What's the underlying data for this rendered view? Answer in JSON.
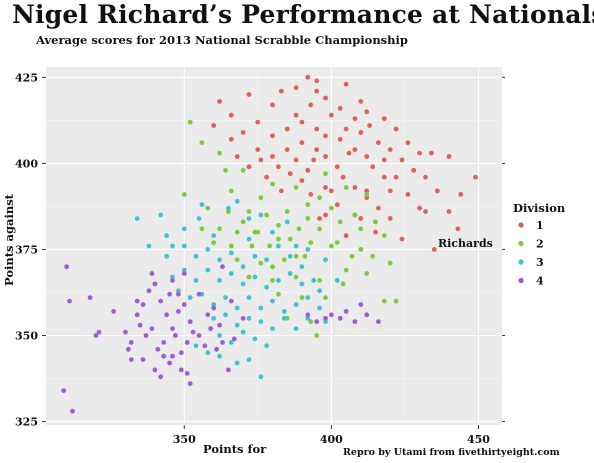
{
  "chart_data": {
    "type": "scatter",
    "title": "Nigel Richard’s Performance at Nationals",
    "subtitle": "Average scores for 2013 National Scrabble Championship",
    "xlabel": "Points for",
    "ylabel": "Points against",
    "xlim": [
      303,
      458
    ],
    "ylim": [
      324,
      428
    ],
    "xticks": [
      350,
      400,
      450
    ],
    "yticks": [
      325,
      350,
      375,
      400,
      425
    ],
    "grid": true,
    "legend": {
      "title": "Division",
      "placement": "right"
    },
    "annotation": {
      "text": "Richards",
      "x": 436,
      "y": 375
    },
    "credit": "Repro by Utami from fivethirtyeight.com",
    "series": [
      {
        "name": "1",
        "color": "#E0605A",
        "points": [
          [
            392,
            425
          ],
          [
            395,
            424
          ],
          [
            388,
            422
          ],
          [
            395,
            421
          ],
          [
            405,
            423
          ],
          [
            383,
            421
          ],
          [
            398,
            419
          ],
          [
            410,
            418
          ],
          [
            372,
            420
          ],
          [
            362,
            418
          ],
          [
            380,
            417
          ],
          [
            393,
            417
          ],
          [
            403,
            416
          ],
          [
            412,
            415
          ],
          [
            366,
            414
          ],
          [
            388,
            414
          ],
          [
            400,
            414
          ],
          [
            418,
            413
          ],
          [
            375,
            412
          ],
          [
            390,
            412
          ],
          [
            408,
            413
          ],
          [
            360,
            411
          ],
          [
            385,
            410
          ],
          [
            395,
            410
          ],
          [
            405,
            410
          ],
          [
            413,
            411
          ],
          [
            422,
            410
          ],
          [
            370,
            409
          ],
          [
            380,
            408
          ],
          [
            398,
            408
          ],
          [
            410,
            409
          ],
          [
            366,
            407
          ],
          [
            390,
            406
          ],
          [
            403,
            407
          ],
          [
            416,
            406
          ],
          [
            426,
            406
          ],
          [
            375,
            404
          ],
          [
            385,
            404
          ],
          [
            395,
            404
          ],
          [
            408,
            404
          ],
          [
            420,
            404
          ],
          [
            430,
            403
          ],
          [
            368,
            402
          ],
          [
            380,
            402
          ],
          [
            388,
            401
          ],
          [
            398,
            402
          ],
          [
            412,
            402
          ],
          [
            424,
            401
          ],
          [
            434,
            403
          ],
          [
            440,
            402
          ],
          [
            372,
            399
          ],
          [
            382,
            399
          ],
          [
            392,
            398
          ],
          [
            402,
            399
          ],
          [
            414,
            399
          ],
          [
            428,
            398
          ],
          [
            378,
            396
          ],
          [
            390,
            395
          ],
          [
            404,
            396
          ],
          [
            418,
            396
          ],
          [
            432,
            396
          ],
          [
            398,
            393
          ],
          [
            408,
            393
          ],
          [
            420,
            392
          ],
          [
            436,
            392
          ],
          [
            449,
            396
          ],
          [
            383,
            392
          ],
          [
            393,
            391
          ],
          [
            412,
            390
          ],
          [
            426,
            391
          ],
          [
            444,
            391
          ],
          [
            402,
            388
          ],
          [
            416,
            387
          ],
          [
            430,
            387
          ],
          [
            398,
            385
          ],
          [
            408,
            385
          ],
          [
            420,
            384
          ],
          [
            440,
            386
          ],
          [
            432,
            386
          ],
          [
            415,
            380
          ],
          [
            424,
            378
          ],
          [
            405,
            379
          ],
          [
            443,
            381
          ],
          [
            396,
            384
          ],
          [
            412,
            392
          ],
          [
            400,
            392
          ],
          [
            394,
            401
          ],
          [
            406,
            403
          ],
          [
            418,
            401
          ],
          [
            386,
            397
          ],
          [
            376,
            401
          ],
          [
            410,
            384
          ],
          [
            422,
            396
          ],
          [
            435,
            375
          ]
        ]
      },
      {
        "name": "2",
        "color": "#7CCB3C",
        "points": [
          [
            352,
            412
          ],
          [
            356,
            406
          ],
          [
            362,
            403
          ],
          [
            364,
            398
          ],
          [
            370,
            398
          ],
          [
            380,
            394
          ],
          [
            388,
            393
          ],
          [
            398,
            397
          ],
          [
            405,
            393
          ],
          [
            412,
            391
          ],
          [
            350,
            391
          ],
          [
            358,
            387
          ],
          [
            365,
            386
          ],
          [
            372,
            386
          ],
          [
            378,
            385
          ],
          [
            385,
            386
          ],
          [
            392,
            388
          ],
          [
            400,
            387
          ],
          [
            408,
            385
          ],
          [
            415,
            383
          ],
          [
            356,
            381
          ],
          [
            362,
            381
          ],
          [
            368,
            380
          ],
          [
            375,
            380
          ],
          [
            382,
            382
          ],
          [
            389,
            381
          ],
          [
            396,
            381
          ],
          [
            403,
            383
          ],
          [
            410,
            381
          ],
          [
            418,
            379
          ],
          [
            360,
            377
          ],
          [
            366,
            376
          ],
          [
            373,
            376
          ],
          [
            379,
            376
          ],
          [
            386,
            378
          ],
          [
            393,
            377
          ],
          [
            400,
            376
          ],
          [
            407,
            373
          ],
          [
            414,
            373
          ],
          [
            420,
            371
          ],
          [
            368,
            372
          ],
          [
            376,
            371
          ],
          [
            384,
            372
          ],
          [
            391,
            373
          ],
          [
            398,
            372
          ],
          [
            405,
            369
          ],
          [
            412,
            368
          ],
          [
            372,
            367
          ],
          [
            380,
            366
          ],
          [
            388,
            367
          ],
          [
            396,
            366
          ],
          [
            404,
            365
          ],
          [
            382,
            362
          ],
          [
            390,
            361
          ],
          [
            398,
            361
          ],
          [
            418,
            360
          ],
          [
            422,
            360
          ],
          [
            385,
            355
          ],
          [
            393,
            354
          ],
          [
            395,
            350
          ],
          [
            376,
            390
          ],
          [
            382,
            378
          ],
          [
            370,
            383
          ],
          [
            388,
            373
          ],
          [
            392,
            384
          ],
          [
            366,
            392
          ],
          [
            402,
            377
          ],
          [
            374,
            380
          ],
          [
            380,
            370
          ],
          [
            410,
            375
          ],
          [
            396,
            390
          ]
        ]
      },
      {
        "name": "3",
        "color": "#3FC4CE",
        "points": [
          [
            334,
            384
          ],
          [
            342,
            385
          ],
          [
            350,
            381
          ],
          [
            355,
            384
          ],
          [
            360,
            379
          ],
          [
            365,
            387
          ],
          [
            368,
            389
          ],
          [
            372,
            384
          ],
          [
            376,
            385
          ],
          [
            380,
            380
          ],
          [
            385,
            383
          ],
          [
            338,
            376
          ],
          [
            344,
            373
          ],
          [
            350,
            376
          ],
          [
            354,
            373
          ],
          [
            358,
            375
          ],
          [
            362,
            372
          ],
          [
            366,
            374
          ],
          [
            370,
            370
          ],
          [
            374,
            373
          ],
          [
            378,
            372
          ],
          [
            382,
            376
          ],
          [
            386,
            373
          ],
          [
            390,
            370
          ],
          [
            346,
            367
          ],
          [
            350,
            369
          ],
          [
            354,
            366
          ],
          [
            358,
            369
          ],
          [
            362,
            366
          ],
          [
            366,
            368
          ],
          [
            370,
            365
          ],
          [
            374,
            367
          ],
          [
            378,
            364
          ],
          [
            382,
            366
          ],
          [
            386,
            368
          ],
          [
            390,
            365
          ],
          [
            394,
            366
          ],
          [
            352,
            361
          ],
          [
            356,
            362
          ],
          [
            360,
            359
          ],
          [
            364,
            361
          ],
          [
            368,
            358
          ],
          [
            372,
            361
          ],
          [
            376,
            358
          ],
          [
            380,
            360
          ],
          [
            384,
            357
          ],
          [
            388,
            359
          ],
          [
            392,
            361
          ],
          [
            360,
            355
          ],
          [
            364,
            356
          ],
          [
            368,
            353
          ],
          [
            372,
            355
          ],
          [
            376,
            354
          ],
          [
            380,
            352
          ],
          [
            384,
            355
          ],
          [
            388,
            352
          ],
          [
            392,
            355
          ],
          [
            396,
            358
          ],
          [
            362,
            350
          ],
          [
            366,
            348
          ],
          [
            370,
            351
          ],
          [
            374,
            349
          ],
          [
            378,
            347
          ],
          [
            354,
            347
          ],
          [
            358,
            345
          ],
          [
            362,
            344
          ],
          [
            368,
            342
          ],
          [
            372,
            343
          ],
          [
            376,
            338
          ],
          [
            398,
            372
          ],
          [
            356,
            388
          ],
          [
            344,
            379
          ],
          [
            388,
            376
          ],
          [
            372,
            378
          ],
          [
            392,
            375
          ],
          [
            402,
            366
          ],
          [
            396,
            363
          ],
          [
            340,
            365
          ],
          [
            348,
            363
          ],
          [
            346,
            376
          ],
          [
            398,
            354
          ]
        ]
      },
      {
        "name": "4",
        "color": "#A15BD8",
        "points": [
          [
            310,
            370
          ],
          [
            311,
            360
          ],
          [
            318,
            361
          ],
          [
            309,
            334
          ],
          [
            312,
            328
          ],
          [
            320,
            350
          ],
          [
            321,
            351
          ],
          [
            326,
            357
          ],
          [
            330,
            351
          ],
          [
            332,
            348
          ],
          [
            332,
            343
          ],
          [
            334,
            356
          ],
          [
            336,
            359
          ],
          [
            338,
            363
          ],
          [
            340,
            365
          ],
          [
            342,
            360
          ],
          [
            344,
            356
          ],
          [
            346,
            366
          ],
          [
            348,
            362
          ],
          [
            350,
            359
          ],
          [
            337,
            350
          ],
          [
            339,
            352
          ],
          [
            341,
            346
          ],
          [
            343,
            348
          ],
          [
            345,
            342
          ],
          [
            347,
            350
          ],
          [
            349,
            345
          ],
          [
            351,
            348
          ],
          [
            353,
            351
          ],
          [
            340,
            340
          ],
          [
            343,
            344
          ],
          [
            346,
            344
          ],
          [
            349,
            340
          ],
          [
            352,
            336
          ],
          [
            355,
            350
          ],
          [
            357,
            347
          ],
          [
            359,
            352
          ],
          [
            361,
            346
          ],
          [
            363,
            348
          ],
          [
            365,
            340
          ],
          [
            367,
            349
          ],
          [
            350,
            368
          ],
          [
            355,
            362
          ],
          [
            358,
            356
          ],
          [
            360,
            358
          ],
          [
            331,
            346
          ],
          [
            334,
            360
          ],
          [
            345,
            362
          ],
          [
            339,
            368
          ],
          [
            348,
            357
          ],
          [
            352,
            354
          ],
          [
            362,
            353
          ],
          [
            366,
            360
          ],
          [
            342,
            338
          ],
          [
            336,
            343
          ],
          [
            351,
            339
          ],
          [
            370,
            355
          ],
          [
            363,
            370
          ],
          [
            346,
            352
          ],
          [
            335,
            353
          ],
          [
            395,
            354
          ],
          [
            403,
            355
          ],
          [
            392,
            356
          ],
          [
            410,
            359
          ],
          [
            405,
            357
          ],
          [
            398,
            355
          ],
          [
            416,
            354
          ],
          [
            412,
            356
          ],
          [
            408,
            354
          ],
          [
            400,
            356
          ]
        ]
      }
    ]
  }
}
